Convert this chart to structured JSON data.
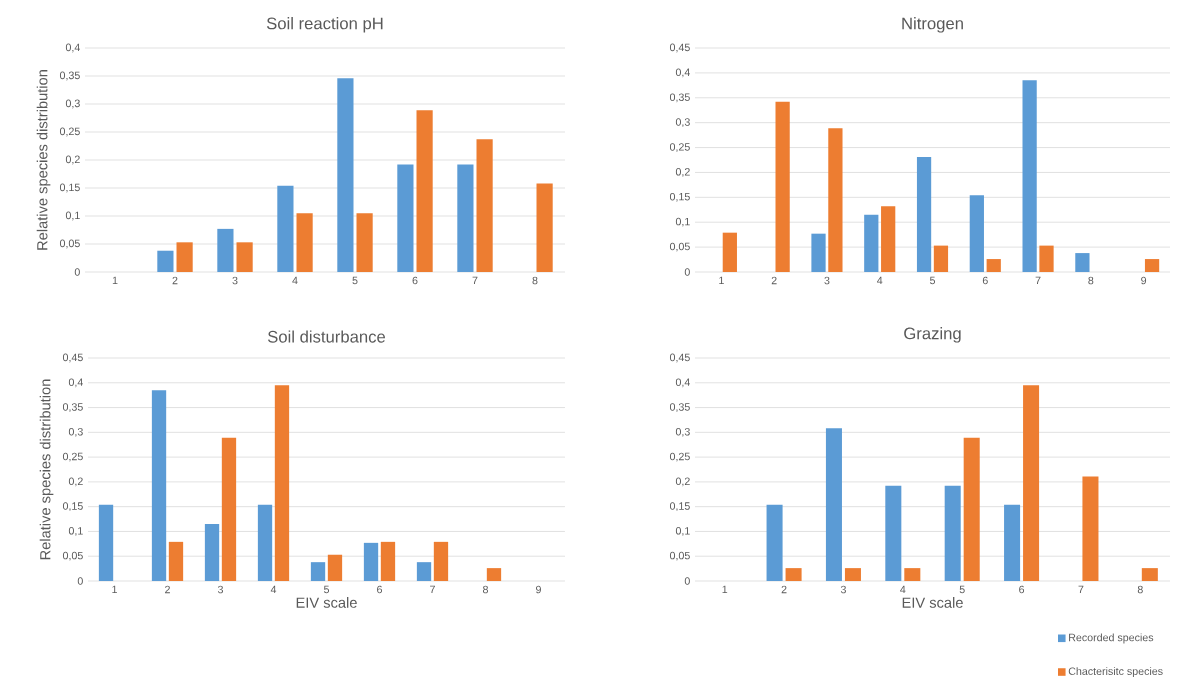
{
  "chart_data": [
    {
      "type": "bar",
      "title": "Soil reaction pH",
      "ylabel": "Relative species distribution",
      "categories": [
        "1",
        "2",
        "3",
        "4",
        "5",
        "6",
        "7",
        "8"
      ],
      "series": [
        {
          "color": "#5b9bd5",
          "values": [
            null,
            0.038,
            0.077,
            0.154,
            0.346,
            0.192,
            0.192,
            null
          ]
        },
        {
          "color": "#ed7d31",
          "values": [
            null,
            0.053,
            0.053,
            0.105,
            0.105,
            0.289,
            0.237,
            0.158
          ]
        }
      ],
      "ylim": [
        0,
        0.4
      ],
      "yticks": [
        0,
        {
          "value": 0.05,
          "label": "0,05"
        },
        {
          "value": 0.1,
          "label": "0,1"
        },
        {
          "value": 0.15,
          "label": "0,15"
        },
        {
          "value": 0.2,
          "label": "0,2"
        },
        {
          "value": 0.25,
          "label": "0,25"
        },
        {
          "value": 0.3,
          "label": "0,3"
        },
        {
          "value": 0.35,
          "label": "0,35"
        },
        {
          "value": 0.4,
          "label": "0,4"
        }
      ],
      "grid": "y"
    },
    {
      "type": "bar",
      "title": "Nitrogen",
      "categories": [
        "1",
        "2",
        "3",
        "4",
        "5",
        "6",
        "7",
        "8",
        "9"
      ],
      "series": [
        {
          "color": "#5b9bd5",
          "values": [
            null,
            null,
            0.077,
            0.115,
            0.231,
            0.154,
            0.385,
            0.038,
            null
          ]
        },
        {
          "color": "#ed7d31",
          "values": [
            0.079,
            0.342,
            0.289,
            0.132,
            0.053,
            0.026,
            0.053,
            null,
            0.026
          ]
        }
      ],
      "ylim": [
        0,
        0.45
      ],
      "yticks": [
        0,
        {
          "value": 0.05,
          "label": "0,05"
        },
        {
          "value": 0.1,
          "label": "0,1"
        },
        {
          "value": 0.15,
          "label": "0,15"
        },
        {
          "value": 0.2,
          "label": "0,2"
        },
        {
          "value": 0.25,
          "label": "0,25"
        },
        {
          "value": 0.3,
          "label": "0,3"
        },
        {
          "value": 0.35,
          "label": "0,35"
        },
        {
          "value": 0.4,
          "label": "0,4"
        },
        {
          "value": 0.45,
          "label": "0,45"
        }
      ],
      "grid": "y"
    },
    {
      "type": "bar",
      "title": "Soil disturbance",
      "xlabel": "EIV scale",
      "ylabel": "Relative species distribution",
      "categories": [
        "1",
        "2",
        "3",
        "4",
        "5",
        "6",
        "7",
        "8",
        "9"
      ],
      "series": [
        {
          "color": "#5b9bd5",
          "values": [
            0.154,
            0.385,
            0.115,
            0.154,
            0.038,
            0.077,
            0.038,
            null,
            null
          ]
        },
        {
          "color": "#ed7d31",
          "values": [
            null,
            0.079,
            0.289,
            0.395,
            0.053,
            0.079,
            0.079,
            0.026,
            null
          ]
        }
      ],
      "ylim": [
        0,
        0.45
      ],
      "yticks": [
        0,
        {
          "value": 0.05,
          "label": "0,05"
        },
        {
          "value": 0.1,
          "label": "0,1"
        },
        {
          "value": 0.15,
          "label": "0,15"
        },
        {
          "value": 0.2,
          "label": "0,2"
        },
        {
          "value": 0.25,
          "label": "0,25"
        },
        {
          "value": 0.3,
          "label": "0,3"
        },
        {
          "value": 0.35,
          "label": "0,35"
        },
        {
          "value": 0.4,
          "label": "0,4"
        },
        {
          "value": 0.45,
          "label": "0,45"
        }
      ],
      "grid": "y"
    },
    {
      "type": "bar",
      "title": "Grazing",
      "xlabel": "EIV scale",
      "categories": [
        "1",
        "2",
        "3",
        "4",
        "5",
        "6",
        "7",
        "8"
      ],
      "series": [
        {
          "name": "Recorded species",
          "color": "#5b9bd5",
          "values": [
            null,
            0.154,
            0.308,
            0.192,
            0.192,
            0.154,
            null,
            null
          ]
        },
        {
          "name": "Chacterisitc species",
          "color": "#ed7d31",
          "values": [
            null,
            0.026,
            0.026,
            0.026,
            0.289,
            0.395,
            0.211,
            0.026
          ]
        }
      ],
      "ylim": [
        0,
        0.45
      ],
      "yticks": [
        0,
        {
          "value": 0.05,
          "label": "0,05"
        },
        {
          "value": 0.1,
          "label": "0,1"
        },
        {
          "value": 0.15,
          "label": "0,15"
        },
        {
          "value": 0.2,
          "label": "0,2"
        },
        {
          "value": 0.25,
          "label": "0,25"
        },
        {
          "value": 0.3,
          "label": "0,3"
        },
        {
          "value": 0.35,
          "label": "0,35"
        },
        {
          "value": 0.4,
          "label": "0,4"
        },
        {
          "value": 0.45,
          "label": "0,45"
        }
      ],
      "grid": "y",
      "legend": "bottom right"
    }
  ]
}
